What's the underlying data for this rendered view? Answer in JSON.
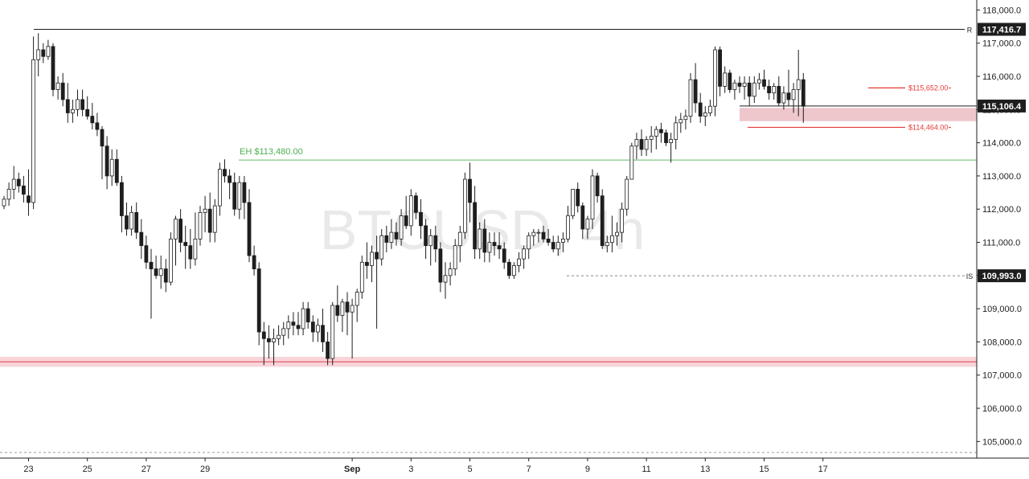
{
  "chart_data": {
    "type": "candlestick",
    "watermark": "BTCUSD, 4h",
    "ylim": [
      104500,
      118300
    ],
    "y_ticks": [
      105000,
      106000,
      107000,
      108000,
      109000,
      110000,
      111000,
      112000,
      113000,
      114000,
      115000,
      116000,
      117000,
      118000
    ],
    "y_tick_labels": [
      "105,000.0",
      "106,000.0",
      "107,000.0",
      "108,000.0",
      "109,000.0",
      "110,000.0",
      "111,000.0",
      "112,000.0",
      "113,000.0",
      "114,000.0",
      "115,000.0",
      "116,000.0",
      "117,000.0",
      "118,000.0"
    ],
    "x_ticks": [
      {
        "label": "23",
        "bold": false,
        "index": 5
      },
      {
        "label": "25",
        "bold": false,
        "index": 17
      },
      {
        "label": "27",
        "bold": false,
        "index": 29
      },
      {
        "label": "29",
        "bold": false,
        "index": 41
      },
      {
        "label": "Sep",
        "bold": true,
        "index": 71
      },
      {
        "label": "3",
        "bold": false,
        "index": 83
      },
      {
        "label": "5",
        "bold": false,
        "index": 95
      },
      {
        "label": "7",
        "bold": false,
        "index": 107
      },
      {
        "label": "9",
        "bold": false,
        "index": 119
      },
      {
        "label": "11",
        "bold": false,
        "index": 131
      },
      {
        "label": "13",
        "bold": false,
        "index": 143
      },
      {
        "label": "15",
        "bold": false,
        "index": 155
      },
      {
        "label": "17",
        "bold": false,
        "index": 167
      }
    ],
    "candles": [
      [
        112100,
        112400,
        112000,
        112300
      ],
      [
        112300,
        112800,
        112100,
        112600
      ],
      [
        112600,
        113300,
        112300,
        112900
      ],
      [
        112900,
        113100,
        112500,
        112700
      ],
      [
        112700,
        113000,
        112200,
        112450
      ],
      [
        112400,
        113200,
        111800,
        112200
      ],
      [
        112200,
        117200,
        112000,
        116500
      ],
      [
        116500,
        117300,
        116000,
        116800
      ],
      [
        116800,
        117000,
        116400,
        116600
      ],
      [
        116600,
        117100,
        116500,
        116900
      ],
      [
        116900,
        117000,
        115400,
        115600
      ],
      [
        115600,
        116000,
        115300,
        115800
      ],
      [
        115800,
        116100,
        115100,
        115300
      ],
      [
        115300,
        115800,
        114600,
        114900
      ],
      [
        114900,
        115300,
        114600,
        115000
      ],
      [
        115000,
        115600,
        114800,
        115300
      ],
      [
        115300,
        115600,
        114800,
        115000
      ],
      [
        115000,
        115400,
        114700,
        114800
      ],
      [
        114800,
        115200,
        114400,
        114600
      ],
      [
        114600,
        114900,
        114200,
        114400
      ],
      [
        114400,
        114500,
        112900,
        113900
      ],
      [
        113900,
        114200,
        112600,
        113000
      ],
      [
        113000,
        113800,
        112700,
        113500
      ],
      [
        113500,
        113800,
        112700,
        112800
      ],
      [
        112800,
        113000,
        111300,
        111800
      ],
      [
        111800,
        112200,
        111200,
        111400
      ],
      [
        111400,
        112100,
        111200,
        111900
      ],
      [
        111900,
        112200,
        111100,
        111300
      ],
      [
        111300,
        111700,
        110500,
        110900
      ],
      [
        110900,
        111200,
        110200,
        110400
      ],
      [
        110400,
        110800,
        108700,
        110200
      ],
      [
        110200,
        110600,
        109900,
        110000
      ],
      [
        110000,
        110600,
        109600,
        110200
      ],
      [
        110200,
        110500,
        109500,
        109800
      ],
      [
        109800,
        111300,
        109700,
        111100
      ],
      [
        111100,
        111800,
        110300,
        111700
      ],
      [
        111700,
        112000,
        110700,
        111000
      ],
      [
        111000,
        111500,
        110200,
        110900
      ],
      [
        110900,
        111400,
        110200,
        110500
      ],
      [
        110500,
        111900,
        110300,
        111100
      ],
      [
        111100,
        112100,
        110900,
        111900
      ],
      [
        111900,
        112400,
        111300,
        112000
      ],
      [
        112000,
        112500,
        111000,
        111300
      ],
      [
        111300,
        112300,
        111000,
        112100
      ],
      [
        112100,
        113400,
        111800,
        113200
      ],
      [
        113200,
        113500,
        112800,
        113000
      ],
      [
        113000,
        113200,
        112300,
        112800
      ],
      [
        112800,
        113100,
        111800,
        112000
      ],
      [
        112000,
        113000,
        111700,
        112800
      ],
      [
        112800,
        113000,
        111700,
        112200
      ],
      [
        112200,
        112600,
        110400,
        110600
      ],
      [
        110600,
        110900,
        110000,
        110200
      ],
      [
        110200,
        110400,
        107900,
        108300
      ],
      [
        108300,
        108600,
        107300,
        108100
      ],
      [
        108100,
        108500,
        107500,
        108000
      ],
      [
        108000,
        108400,
        107300,
        108100
      ],
      [
        108100,
        108500,
        107900,
        108200
      ],
      [
        108200,
        108600,
        107900,
        108400
      ],
      [
        108400,
        108800,
        108100,
        108600
      ],
      [
        108600,
        108900,
        108200,
        108500
      ],
      [
        108500,
        108900,
        108200,
        108400
      ],
      [
        108400,
        109200,
        108200,
        109000
      ],
      [
        109000,
        109200,
        108400,
        108600
      ],
      [
        108600,
        108800,
        108000,
        108300
      ],
      [
        108300,
        108700,
        108000,
        108500
      ],
      [
        108500,
        109000,
        107700,
        108000
      ],
      [
        108000,
        108300,
        107300,
        107500
      ],
      [
        107500,
        109200,
        107300,
        109100
      ],
      [
        109100,
        109700,
        108600,
        108800
      ],
      [
        108800,
        109300,
        108300,
        109200
      ],
      [
        109200,
        109500,
        108200,
        108900
      ],
      [
        108900,
        109300,
        107500,
        109100
      ],
      [
        109100,
        109600,
        108600,
        109500
      ],
      [
        109500,
        110600,
        109300,
        110400
      ],
      [
        110400,
        111000,
        109900,
        110300
      ],
      [
        110300,
        110900,
        109800,
        110700
      ],
      [
        110700,
        111200,
        108400,
        110500
      ],
      [
        110500,
        111400,
        110300,
        111200
      ],
      [
        111200,
        111500,
        110700,
        111000
      ],
      [
        111000,
        111700,
        110800,
        111300
      ],
      [
        111300,
        111600,
        110900,
        111100
      ],
      [
        111100,
        112000,
        110900,
        111800
      ],
      [
        111800,
        112400,
        111400,
        111500
      ],
      [
        111500,
        112600,
        111200,
        112400
      ],
      [
        112400,
        112500,
        111700,
        111900
      ],
      [
        111900,
        112300,
        111100,
        111500
      ],
      [
        111500,
        111700,
        110500,
        110900
      ],
      [
        110900,
        111400,
        110300,
        111200
      ],
      [
        111200,
        111500,
        110400,
        110800
      ],
      [
        110800,
        111000,
        109500,
        109800
      ],
      [
        109800,
        110400,
        109300,
        110000
      ],
      [
        110000,
        110400,
        109700,
        110200
      ],
      [
        110200,
        111100,
        110000,
        110900
      ],
      [
        110900,
        111500,
        110400,
        111300
      ],
      [
        111300,
        113100,
        111100,
        112900
      ],
      [
        112900,
        113400,
        111600,
        112200
      ],
      [
        112200,
        112700,
        110500,
        110800
      ],
      [
        110800,
        111600,
        110500,
        111400
      ],
      [
        111400,
        111700,
        110400,
        110700
      ],
      [
        110700,
        111300,
        110400,
        111000
      ],
      [
        111000,
        111300,
        110600,
        110900
      ],
      [
        110900,
        111300,
        110500,
        110800
      ],
      [
        110800,
        111000,
        110200,
        110400
      ],
      [
        110400,
        110500,
        109900,
        110000
      ],
      [
        110000,
        110400,
        109900,
        110300
      ],
      [
        110300,
        110700,
        110100,
        110500
      ],
      [
        110500,
        110900,
        110200,
        110800
      ],
      [
        110800,
        111300,
        110500,
        111200
      ],
      [
        111200,
        111400,
        110900,
        111300
      ],
      [
        111300,
        111400,
        111000,
        111300
      ],
      [
        111300,
        111500,
        111000,
        111100
      ],
      [
        111100,
        111400,
        110900,
        111000
      ],
      [
        111000,
        111200,
        110700,
        110800
      ],
      [
        110800,
        111200,
        110600,
        111000
      ],
      [
        111000,
        111300,
        110700,
        111100
      ],
      [
        111100,
        112100,
        111000,
        111800
      ],
      [
        111800,
        112600,
        111700,
        112600
      ],
      [
        112600,
        112800,
        111900,
        112100
      ],
      [
        112100,
        112200,
        111100,
        111400
      ],
      [
        111400,
        111800,
        111100,
        111700
      ],
      [
        111700,
        113200,
        111400,
        113000
      ],
      [
        113000,
        113100,
        112200,
        112400
      ],
      [
        112400,
        112600,
        110800,
        110900
      ],
      [
        110900,
        111200,
        110700,
        111000
      ],
      [
        111000,
        111800,
        110700,
        111200
      ],
      [
        111200,
        111600,
        110900,
        111300
      ],
      [
        111300,
        112200,
        111000,
        112000
      ],
      [
        112000,
        113000,
        111800,
        112900
      ],
      [
        112900,
        114000,
        112900,
        113900
      ],
      [
        113900,
        114300,
        113500,
        114100
      ],
      [
        114100,
        114400,
        113600,
        113800
      ],
      [
        113800,
        114200,
        113600,
        114100
      ],
      [
        114100,
        114500,
        113700,
        114200
      ],
      [
        114200,
        114500,
        113800,
        114400
      ],
      [
        114400,
        114600,
        114000,
        114300
      ],
      [
        114300,
        114400,
        113900,
        114000
      ],
      [
        114000,
        114300,
        113400,
        114100
      ],
      [
        114100,
        114800,
        113800,
        114600
      ],
      [
        114600,
        114900,
        114300,
        114700
      ],
      [
        114700,
        115000,
        114400,
        114800
      ],
      [
        114800,
        116100,
        114600,
        115900
      ],
      [
        115900,
        116400,
        114900,
        115200
      ],
      [
        115200,
        115500,
        114600,
        114800
      ],
      [
        114800,
        115100,
        114500,
        114900
      ],
      [
        114900,
        115300,
        114800,
        115100
      ],
      [
        115100,
        116900,
        114800,
        116800
      ],
      [
        116800,
        116900,
        115400,
        115700
      ],
      [
        115700,
        116300,
        115500,
        116100
      ],
      [
        116100,
        116200,
        115500,
        115600
      ],
      [
        115600,
        115900,
        115300,
        115800
      ],
      [
        115800,
        116000,
        115500,
        115700
      ],
      [
        115700,
        116000,
        115300,
        115800
      ],
      [
        115800,
        116000,
        115100,
        115400
      ],
      [
        115400,
        116000,
        115200,
        115800
      ],
      [
        115800,
        116100,
        115600,
        115900
      ],
      [
        115900,
        116200,
        115600,
        115700
      ],
      [
        115700,
        115900,
        115300,
        115500
      ],
      [
        115500,
        115800,
        115300,
        115700
      ],
      [
        115700,
        116000,
        115100,
        115200
      ],
      [
        115200,
        115700,
        115000,
        115500
      ],
      [
        115500,
        116200,
        115100,
        115300
      ],
      [
        115300,
        115800,
        114900,
        115600
      ],
      [
        115600,
        116800,
        114800,
        115900
      ],
      [
        115900,
        116100,
        114600,
        115100
      ]
    ],
    "levels": [
      {
        "label": "R",
        "value": 117416.7,
        "price_label": "117,416.7"
      },
      {
        "label": "IS",
        "value": 109993.0,
        "price_label": "109,993.0"
      },
      {
        "label": "",
        "value": 115106.4,
        "price_label": "115,106.4"
      }
    ],
    "annotations": [
      {
        "text": "EH $113,480.00",
        "value": 113480,
        "color": "#4caf50"
      },
      {
        "text": "$115,652.00",
        "value": 115652,
        "color": "#e53935"
      },
      {
        "text": "$114,464.00",
        "value": 114464,
        "color": "#e53935"
      }
    ],
    "zones": [
      {
        "low": 107250,
        "high": 107550,
        "color": "#f6c6cb"
      },
      {
        "low": 114650,
        "high": 115050,
        "color": "#e8b4bc"
      }
    ],
    "support_line": 107400
  }
}
